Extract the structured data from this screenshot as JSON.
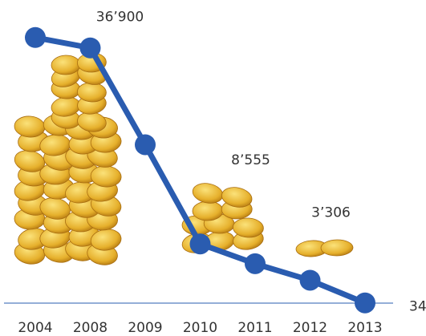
{
  "chart_data": {
    "type": "line",
    "categories": [
      "2004",
      "2008",
      "2009",
      "2010",
      "2011",
      "2012",
      "2013"
    ],
    "series": [
      {
        "color": "#2a5cb0",
        "values": [
          38400,
          36900,
          22900,
          8555,
          5700,
          3306,
          34
        ],
        "value_labels": [
          null,
          "36’900",
          null,
          "8’555",
          null,
          "3’306",
          "34"
        ]
      }
    ],
    "ylim": [
      0,
      40000
    ]
  }
}
